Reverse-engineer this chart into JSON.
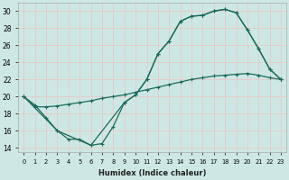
{
  "xlabel": "Humidex (Indice chaleur)",
  "bg_color": "#cde8e4",
  "grid_color": "#e8c8c8",
  "line_color": "#1a6b5a",
  "xlim": [
    -0.5,
    23.5
  ],
  "ylim": [
    13.5,
    31
  ],
  "xticks": [
    0,
    1,
    2,
    3,
    4,
    5,
    6,
    7,
    8,
    9,
    10,
    11,
    12,
    13,
    14,
    15,
    16,
    17,
    18,
    19,
    20,
    21,
    22,
    23
  ],
  "yticks": [
    14,
    16,
    18,
    20,
    22,
    24,
    26,
    28,
    30
  ],
  "curve1_x": [
    0,
    1,
    2,
    3,
    4,
    5,
    6,
    7,
    8,
    9,
    10,
    11,
    12,
    13,
    14,
    15,
    16,
    17,
    18,
    19,
    20,
    21,
    22,
    23
  ],
  "curve1_y": [
    20.0,
    19.0,
    17.5,
    16.0,
    15.0,
    15.0,
    14.3,
    14.5,
    16.5,
    19.3,
    20.2,
    22.0,
    25.0,
    26.5,
    28.8,
    29.4,
    29.5,
    30.0,
    30.2,
    29.8,
    27.8,
    25.6,
    23.2,
    22.0
  ],
  "curve2_x": [
    0,
    1,
    2,
    3,
    4,
    5,
    6,
    7,
    8,
    9,
    10,
    11,
    12,
    13,
    14,
    15,
    16,
    17,
    18,
    19,
    20,
    21,
    22,
    23
  ],
  "curve2_y": [
    20.0,
    18.8,
    18.8,
    18.9,
    19.1,
    19.3,
    19.5,
    19.8,
    20.0,
    20.2,
    20.5,
    20.8,
    21.1,
    21.4,
    21.7,
    22.0,
    22.2,
    22.4,
    22.5,
    22.6,
    22.7,
    22.5,
    22.2,
    22.0
  ],
  "curve3_x": [
    0,
    3,
    6,
    9,
    10,
    11,
    12,
    13,
    14,
    15,
    16,
    17,
    18,
    19,
    20,
    21,
    22,
    23
  ],
  "curve3_y": [
    20.0,
    16.0,
    14.3,
    19.3,
    20.2,
    22.0,
    25.0,
    26.5,
    28.8,
    29.4,
    29.5,
    30.0,
    30.2,
    29.8,
    27.8,
    25.6,
    23.2,
    22.0
  ]
}
